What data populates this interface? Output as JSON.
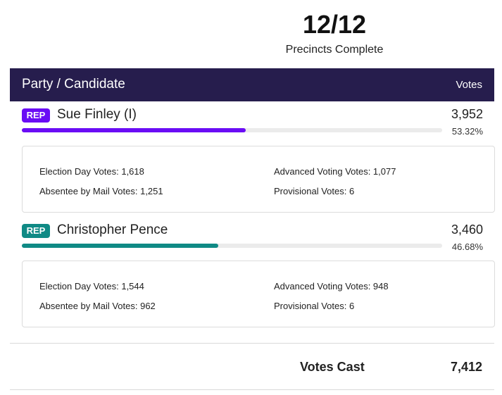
{
  "precincts": {
    "count": "12/12",
    "label": "Precincts Complete"
  },
  "table_header": {
    "left": "Party / Candidate",
    "right": "Votes"
  },
  "candidates": [
    {
      "party": "REP",
      "name": "Sue Finley (I)",
      "votes": "3,952",
      "percent": "53.32%",
      "share": 0.5332,
      "color": "#6a0cf5",
      "details": {
        "election_day": "Election Day Votes: 1,618",
        "advanced": "Advanced Voting Votes: 1,077",
        "absentee": "Absentee by Mail Votes: 1,251",
        "provisional": "Provisional Votes: 6"
      }
    },
    {
      "party": "REP",
      "name": "Christopher Pence",
      "votes": "3,460",
      "percent": "46.68%",
      "share": 0.4668,
      "color": "#0f8a85",
      "details": {
        "election_day": "Election Day Votes: 1,544",
        "advanced": "Advanced Voting Votes: 948",
        "absentee": "Absentee by Mail Votes: 962",
        "provisional": "Provisional Votes: 6"
      }
    }
  ],
  "totals": {
    "label": "Votes Cast",
    "value": "7,412"
  }
}
